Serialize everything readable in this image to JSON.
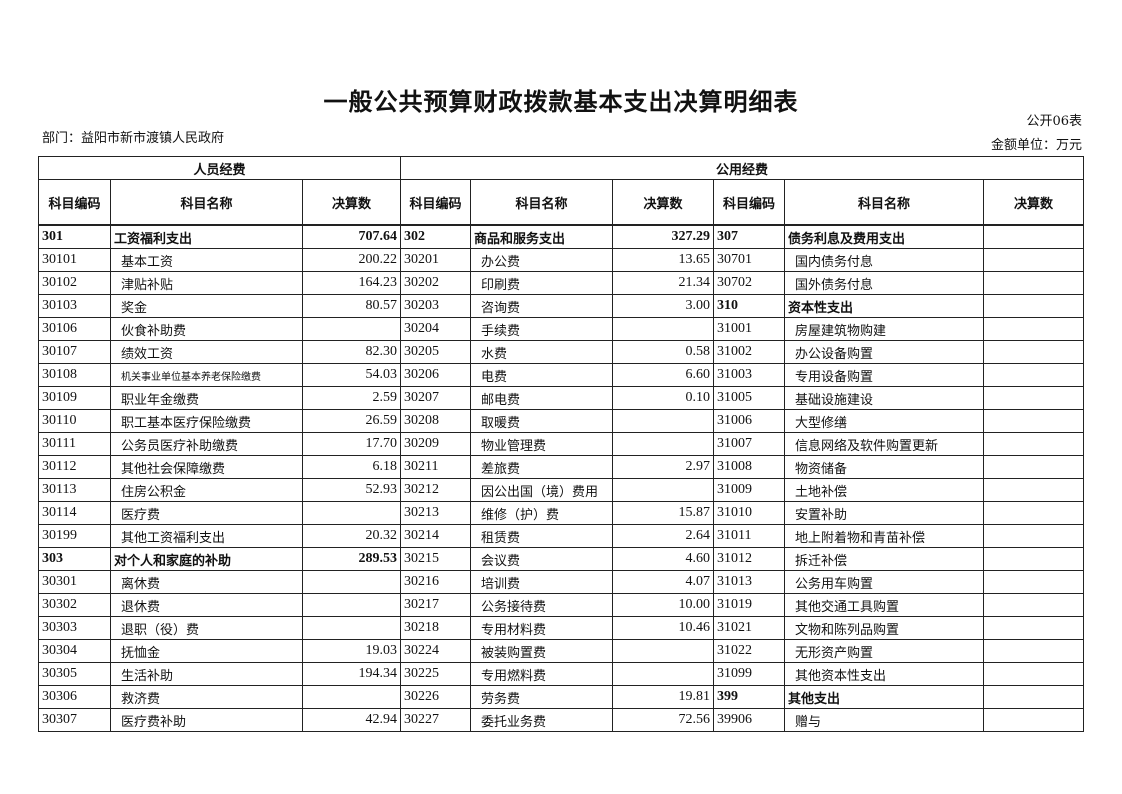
{
  "title": "一般公共预算财政拨款基本支出决算明细表",
  "table_no": "公开06表",
  "department": "部门：益阳市新市渡镇人民政府",
  "unit": "金额单位：万元",
  "groups": {
    "personnel": "人员经费",
    "public": "公用经费"
  },
  "headers": [
    "科目编码",
    "科目名称",
    "决算数",
    "科目编码",
    "科目名称",
    "决算数",
    "科目编码",
    "科目名称",
    "决算数"
  ],
  "rows": [
    [
      [
        "301",
        "工资福利支出",
        "707.64",
        true
      ],
      [
        "302",
        "商品和服务支出",
        "327.29",
        true
      ],
      [
        "307",
        "债务利息及费用支出",
        "",
        true
      ]
    ],
    [
      [
        "30101",
        "基本工资",
        "200.22"
      ],
      [
        "30201",
        "办公费",
        "13.65"
      ],
      [
        "30701",
        "国内债务付息",
        ""
      ]
    ],
    [
      [
        "30102",
        "津贴补贴",
        "164.23"
      ],
      [
        "30202",
        "印刷费",
        "21.34"
      ],
      [
        "30702",
        "国外债务付息",
        ""
      ]
    ],
    [
      [
        "30103",
        "奖金",
        "80.57"
      ],
      [
        "30203",
        "咨询费",
        "3.00"
      ],
      [
        "310",
        "资本性支出",
        "",
        true
      ]
    ],
    [
      [
        "30106",
        "伙食补助费",
        ""
      ],
      [
        "30204",
        "手续费",
        ""
      ],
      [
        "31001",
        "房屋建筑物购建",
        ""
      ]
    ],
    [
      [
        "30107",
        "绩效工资",
        "82.30"
      ],
      [
        "30205",
        "水费",
        "0.58"
      ],
      [
        "31002",
        "办公设备购置",
        ""
      ]
    ],
    [
      [
        "30108",
        "机关事业单位基本养老保险缴费",
        "54.03"
      ],
      [
        "30206",
        "电费",
        "6.60"
      ],
      [
        "31003",
        "专用设备购置",
        ""
      ]
    ],
    [
      [
        "30109",
        "职业年金缴费",
        "2.59"
      ],
      [
        "30207",
        "邮电费",
        "0.10"
      ],
      [
        "31005",
        "基础设施建设",
        ""
      ]
    ],
    [
      [
        "30110",
        "职工基本医疗保险缴费",
        "26.59"
      ],
      [
        "30208",
        "取暖费",
        ""
      ],
      [
        "31006",
        "大型修缮",
        ""
      ]
    ],
    [
      [
        "30111",
        "公务员医疗补助缴费",
        "17.70"
      ],
      [
        "30209",
        "物业管理费",
        ""
      ],
      [
        "31007",
        "信息网络及软件购置更新",
        ""
      ]
    ],
    [
      [
        "30112",
        "其他社会保障缴费",
        "6.18"
      ],
      [
        "30211",
        "差旅费",
        "2.97"
      ],
      [
        "31008",
        "物资储备",
        ""
      ]
    ],
    [
      [
        "30113",
        "住房公积金",
        "52.93"
      ],
      [
        "30212",
        "因公出国（境）费用",
        ""
      ],
      [
        "31009",
        "土地补偿",
        ""
      ]
    ],
    [
      [
        "30114",
        "医疗费",
        ""
      ],
      [
        "30213",
        "维修（护）费",
        "15.87"
      ],
      [
        "31010",
        "安置补助",
        ""
      ]
    ],
    [
      [
        "30199",
        "其他工资福利支出",
        "20.32"
      ],
      [
        "30214",
        "租赁费",
        "2.64"
      ],
      [
        "31011",
        "地上附着物和青苗补偿",
        ""
      ]
    ],
    [
      [
        "303",
        "对个人和家庭的补助",
        "289.53",
        true
      ],
      [
        "30215",
        "会议费",
        "4.60"
      ],
      [
        "31012",
        "拆迁补偿",
        ""
      ]
    ],
    [
      [
        "30301",
        "离休费",
        ""
      ],
      [
        "30216",
        "培训费",
        "4.07"
      ],
      [
        "31013",
        "公务用车购置",
        ""
      ]
    ],
    [
      [
        "30302",
        "退休费",
        ""
      ],
      [
        "30217",
        "公务接待费",
        "10.00"
      ],
      [
        "31019",
        "其他交通工具购置",
        ""
      ]
    ],
    [
      [
        "30303",
        "退职（役）费",
        ""
      ],
      [
        "30218",
        "专用材料费",
        "10.46"
      ],
      [
        "31021",
        "文物和陈列品购置",
        ""
      ]
    ],
    [
      [
        "30304",
        "抚恤金",
        "19.03"
      ],
      [
        "30224",
        "被装购置费",
        ""
      ],
      [
        "31022",
        "无形资产购置",
        ""
      ]
    ],
    [
      [
        "30305",
        "生活补助",
        "194.34"
      ],
      [
        "30225",
        "专用燃料费",
        ""
      ],
      [
        "31099",
        "其他资本性支出",
        ""
      ]
    ],
    [
      [
        "30306",
        "救济费",
        ""
      ],
      [
        "30226",
        "劳务费",
        "19.81"
      ],
      [
        "399",
        "其他支出",
        "",
        true
      ]
    ],
    [
      [
        "30307",
        "医疗费补助",
        "42.94"
      ],
      [
        "30227",
        "委托业务费",
        "72.56"
      ],
      [
        "39906",
        "赠与",
        ""
      ]
    ]
  ]
}
